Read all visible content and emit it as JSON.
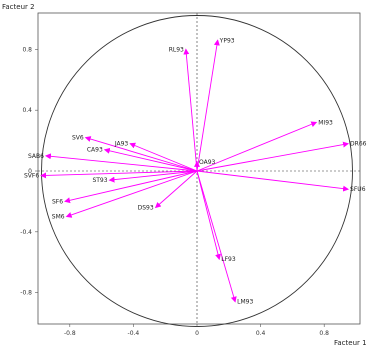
{
  "chart_data": {
    "type": "scatter",
    "subtype": "correlation-circle",
    "title": "",
    "xlabel": "Facteur 1",
    "ylabel": "Facteur 2",
    "xlim": [
      -1.0,
      1.0
    ],
    "ylim": [
      -1.0,
      1.0
    ],
    "x_ticks": [
      "-0.8",
      "-0.4",
      "0",
      "0.4",
      "0.8"
    ],
    "y_ticks": [
      "0.8",
      "0.4",
      "0",
      "-0.4",
      "-0.8"
    ],
    "x_tick_values": [
      -0.8,
      -0.4,
      0,
      0.4,
      0.8
    ],
    "y_tick_values": [
      0.8,
      0.4,
      0,
      -0.4,
      -0.8
    ],
    "grid": false,
    "unit_circle": true,
    "arrow_color": "#ff00ff",
    "points": [
      {
        "label": "RL93",
        "x": -0.07,
        "y": 0.8
      },
      {
        "label": "YP93",
        "x": 0.13,
        "y": 0.86
      },
      {
        "label": "MI93",
        "x": 0.75,
        "y": 0.32
      },
      {
        "label": "DR66",
        "x": 0.95,
        "y": 0.18
      },
      {
        "label": "SFU6",
        "x": 0.95,
        "y": -0.12
      },
      {
        "label": "SV6",
        "x": -0.7,
        "y": 0.22
      },
      {
        "label": "CA93",
        "x": -0.58,
        "y": 0.14
      },
      {
        "label": "JA93",
        "x": -0.42,
        "y": 0.18
      },
      {
        "label": "OA93",
        "x": 0.0,
        "y": 0.06
      },
      {
        "label": "SAB6",
        "x": -0.95,
        "y": 0.1
      },
      {
        "label": "SVF6",
        "x": -0.98,
        "y": -0.03
      },
      {
        "label": "ST93",
        "x": -0.55,
        "y": -0.06
      },
      {
        "label": "SF6",
        "x": -0.83,
        "y": -0.2
      },
      {
        "label": "SM6",
        "x": -0.82,
        "y": -0.3
      },
      {
        "label": "DS93",
        "x": -0.26,
        "y": -0.24
      },
      {
        "label": "LF93",
        "x": 0.14,
        "y": -0.58
      },
      {
        "label": "LM93",
        "x": 0.24,
        "y": -0.86
      }
    ]
  }
}
